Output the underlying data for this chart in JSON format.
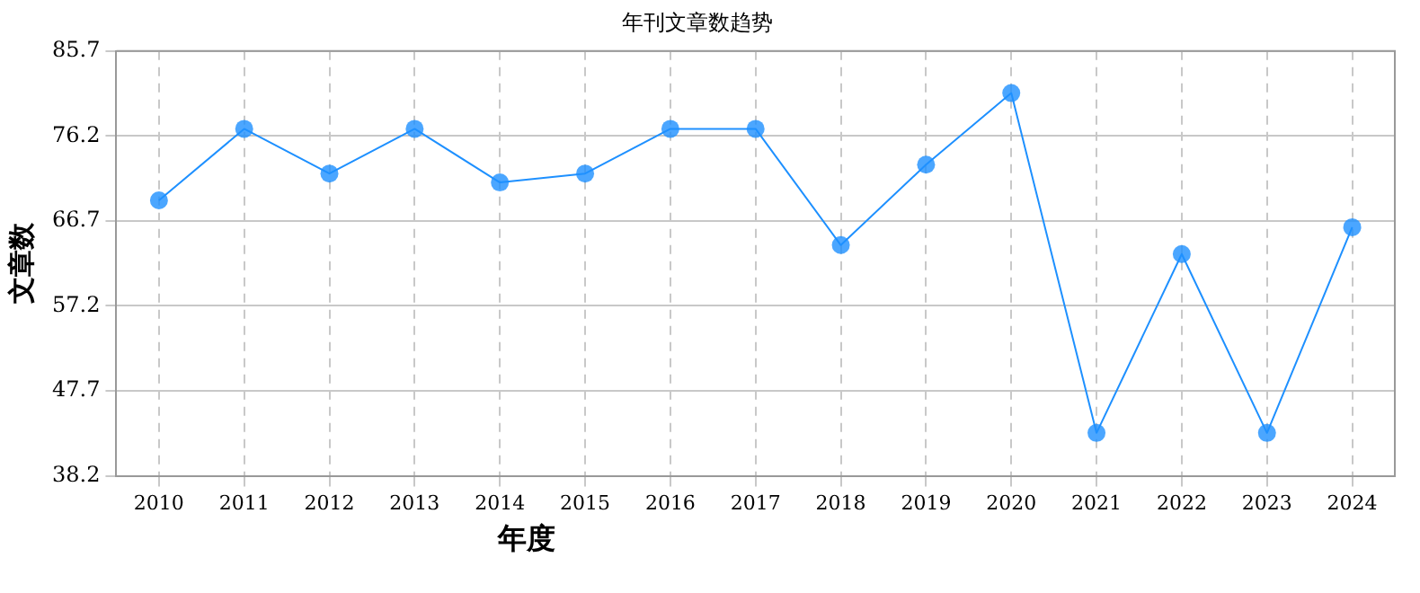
{
  "chart_data": {
    "type": "line",
    "title": "年刊文章数趋势",
    "xlabel": "年度",
    "ylabel": "文章数",
    "categories": [
      "2010",
      "2011",
      "2012",
      "2013",
      "2014",
      "2015",
      "2016",
      "2017",
      "2018",
      "2019",
      "2020",
      "2021",
      "2022",
      "2023",
      "2024"
    ],
    "series": [
      {
        "color": "#1e90ff",
        "values": [
          69,
          77,
          72,
          77,
          71,
          72,
          77,
          77,
          64,
          73,
          81,
          43,
          63,
          43,
          66
        ]
      }
    ],
    "ylim": [
      38.2,
      85.7
    ],
    "yticks": [
      38.2,
      47.7,
      57.2,
      66.7,
      76.2,
      85.7
    ],
    "grid": true,
    "legend": false,
    "marker": "circle",
    "line_style": "solid"
  }
}
